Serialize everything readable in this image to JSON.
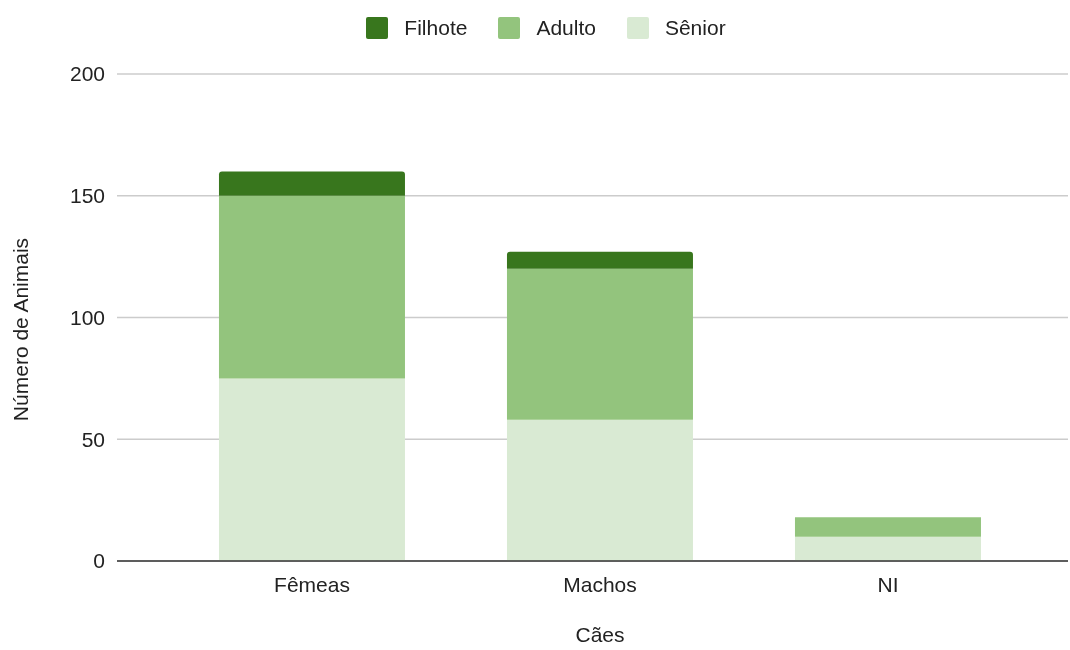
{
  "chart_data": {
    "type": "bar",
    "stacked": true,
    "xlabel": "Cães",
    "ylabel": "Número de Animais",
    "categories": [
      "Fêmeas",
      "Machos",
      "NI"
    ],
    "series": [
      {
        "name": "Sênior",
        "color": "#d9ead3",
        "values": [
          75,
          58,
          10
        ]
      },
      {
        "name": "Adulto",
        "color": "#93c47d",
        "values": [
          75,
          62,
          8
        ]
      },
      {
        "name": "Filhote",
        "color": "#38761d",
        "values": [
          10,
          7,
          0
        ]
      }
    ],
    "ylim": [
      0,
      200
    ],
    "yticks": [
      0,
      50,
      100,
      150,
      200
    ],
    "grid": "y",
    "legend": "top"
  }
}
